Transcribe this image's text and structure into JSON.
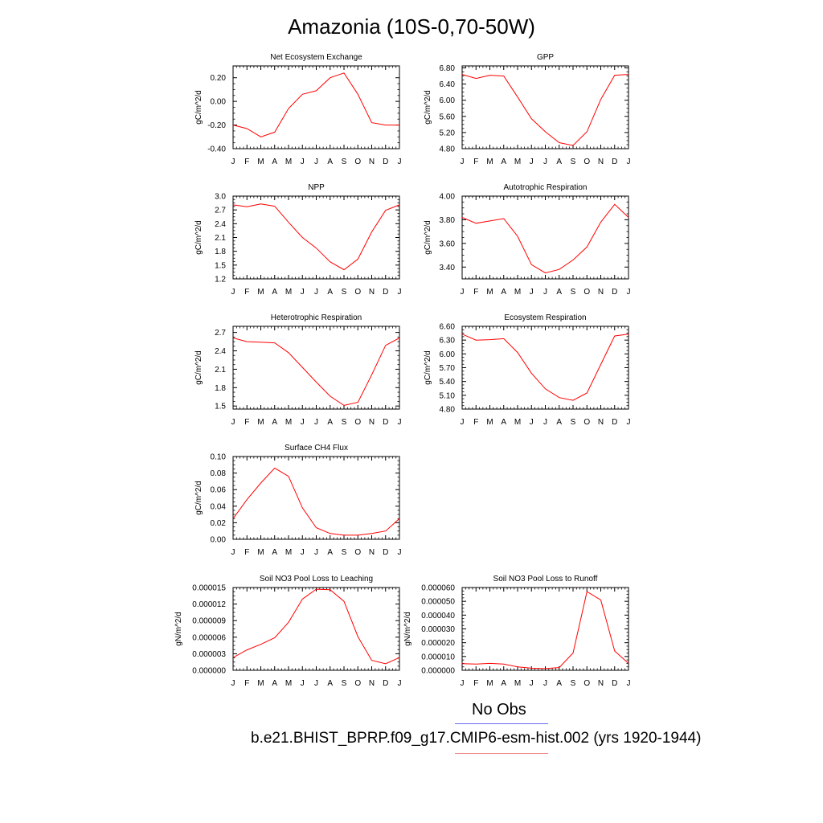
{
  "title": "Amazonia (10S-0,70-50W)",
  "months": [
    "J",
    "F",
    "M",
    "A",
    "M",
    "J",
    "J",
    "A",
    "S",
    "O",
    "N",
    "D",
    "J"
  ],
  "colors": {
    "series": "#ff0000",
    "legend_obs": "#6a6af0",
    "legend_model": "#f08a8a"
  },
  "legend": {
    "obs_label": "No Obs",
    "model_label": "b.e21.BHIST_BPRP.f09_g17.CMIP6-esm-hist.002 (yrs 1920-1944)"
  },
  "chart_data": [
    {
      "type": "line",
      "title": "Net Ecosystem Exchange",
      "ylabel": "gC/m^2/d",
      "ylim": [
        -0.4,
        0.3
      ],
      "yticks": [
        "-0.40",
        "-0.20",
        "0.00",
        "0.20"
      ],
      "ytick_values": [
        -0.4,
        -0.2,
        0.0,
        0.2
      ],
      "series": [
        {
          "values": [
            -0.2,
            -0.23,
            -0.3,
            -0.26,
            -0.06,
            0.06,
            0.09,
            0.2,
            0.24,
            0.06,
            -0.18,
            -0.2,
            -0.2
          ]
        }
      ]
    },
    {
      "type": "line",
      "title": "GPP",
      "ylabel": "gC/m^2/d",
      "ylim": [
        4.8,
        6.85
      ],
      "yticks": [
        "4.80",
        "5.20",
        "5.60",
        "6.00",
        "6.40",
        "6.80"
      ],
      "ytick_values": [
        4.8,
        5.2,
        5.6,
        6.0,
        6.4,
        6.8
      ],
      "series": [
        {
          "values": [
            6.64,
            6.54,
            6.62,
            6.6,
            6.08,
            5.54,
            5.22,
            4.95,
            4.88,
            5.22,
            6.02,
            6.62,
            6.64
          ]
        }
      ]
    },
    {
      "type": "line",
      "title": "NPP",
      "ylabel": "gC/m^2/d",
      "ylim": [
        1.2,
        3.0
      ],
      "yticks": [
        "1.2",
        "1.5",
        "1.8",
        "2.1",
        "2.4",
        "2.7",
        "3.0"
      ],
      "ytick_values": [
        1.2,
        1.5,
        1.8,
        2.1,
        2.4,
        2.7,
        3.0
      ],
      "series": [
        {
          "values": [
            2.81,
            2.77,
            2.83,
            2.78,
            2.43,
            2.1,
            1.87,
            1.57,
            1.4,
            1.63,
            2.22,
            2.69,
            2.81
          ]
        }
      ]
    },
    {
      "type": "line",
      "title": "Autotrophic Respiration",
      "ylabel": "gC/m^2/d",
      "ylim": [
        3.3,
        4.0
      ],
      "yticks": [
        "3.40",
        "3.60",
        "3.80",
        "4.00"
      ],
      "ytick_values": [
        3.4,
        3.6,
        3.8,
        4.0
      ],
      "series": [
        {
          "values": [
            3.82,
            3.77,
            3.79,
            3.81,
            3.66,
            3.42,
            3.35,
            3.38,
            3.46,
            3.57,
            3.78,
            3.93,
            3.82
          ]
        }
      ]
    },
    {
      "type": "line",
      "title": "Heterotrophic Respiration",
      "ylabel": "gC/m^2/d",
      "ylim": [
        1.45,
        2.8
      ],
      "yticks": [
        "1.5",
        "1.8",
        "2.1",
        "2.4",
        "2.7"
      ],
      "ytick_values": [
        1.5,
        1.8,
        2.1,
        2.4,
        2.7
      ],
      "series": [
        {
          "values": [
            2.61,
            2.55,
            2.54,
            2.53,
            2.37,
            2.13,
            1.89,
            1.66,
            1.51,
            1.56,
            2.01,
            2.49,
            2.61
          ]
        }
      ]
    },
    {
      "type": "line",
      "title": "Ecosystem Respiration",
      "ylabel": "gC/m^2/d",
      "ylim": [
        4.8,
        6.6
      ],
      "yticks": [
        "4.80",
        "5.10",
        "5.40",
        "5.70",
        "6.00",
        "6.30",
        "6.60"
      ],
      "ytick_values": [
        4.8,
        5.1,
        5.4,
        5.7,
        6.0,
        6.3,
        6.6
      ],
      "series": [
        {
          "values": [
            6.43,
            6.3,
            6.31,
            6.33,
            6.03,
            5.58,
            5.24,
            5.05,
            4.99,
            5.15,
            5.77,
            6.39,
            6.43
          ]
        }
      ]
    },
    {
      "type": "line",
      "title": "Surface CH4 Flux",
      "ylabel": "gC/m^2/d",
      "ylim": [
        0.0,
        0.1
      ],
      "yticks": [
        "0.00",
        "0.02",
        "0.04",
        "0.06",
        "0.08",
        "0.10"
      ],
      "ytick_values": [
        0.0,
        0.02,
        0.04,
        0.06,
        0.08,
        0.1
      ],
      "series": [
        {
          "values": [
            0.025,
            0.048,
            0.068,
            0.086,
            0.076,
            0.038,
            0.014,
            0.007,
            0.005,
            0.005,
            0.007,
            0.01,
            0.025
          ]
        }
      ]
    },
    null,
    {
      "type": "line",
      "title": "Soil NO3 Pool Loss to Leaching",
      "ylabel": "gN/m^2/d",
      "ylim": [
        0.0,
        1.5e-05
      ],
      "yticks": [
        "0.000000",
        "0.000003",
        "0.000006",
        "0.000009",
        "0.000012",
        "0.000015"
      ],
      "ytick_values": [
        0.0,
        3e-06,
        6e-06,
        9e-06,
        1.2e-05,
        1.5e-05
      ],
      "series": [
        {
          "values": [
            2.3e-06,
            3.7e-06,
            4.7e-06,
            5.9e-06,
            8.7e-06,
            1.29e-05,
            1.47e-05,
            1.46e-05,
            1.25e-05,
            6.1e-06,
            1.8e-06,
            1.2e-06,
            2.3e-06
          ]
        }
      ]
    },
    {
      "type": "line",
      "title": "Soil NO3 Pool Loss to Runoff",
      "ylabel": "gN/m^2/d",
      "ylim": [
        0.0,
        6e-05
      ],
      "yticks": [
        "0.000000",
        "0.000010",
        "0.000020",
        "0.000030",
        "0.000040",
        "0.000050",
        "0.000060"
      ],
      "ytick_values": [
        0.0,
        1e-05,
        2e-05,
        3e-05,
        4e-05,
        5e-05,
        6e-05
      ],
      "series": [
        {
          "values": [
            4.8e-06,
            4.5e-06,
            5e-06,
            4.5e-06,
            2.5e-06,
            1.5e-06,
            1.2e-06,
            2e-06,
            1.25e-05,
            5.7e-05,
            5.1e-05,
            1.4e-05,
            5e-06
          ]
        }
      ]
    }
  ]
}
